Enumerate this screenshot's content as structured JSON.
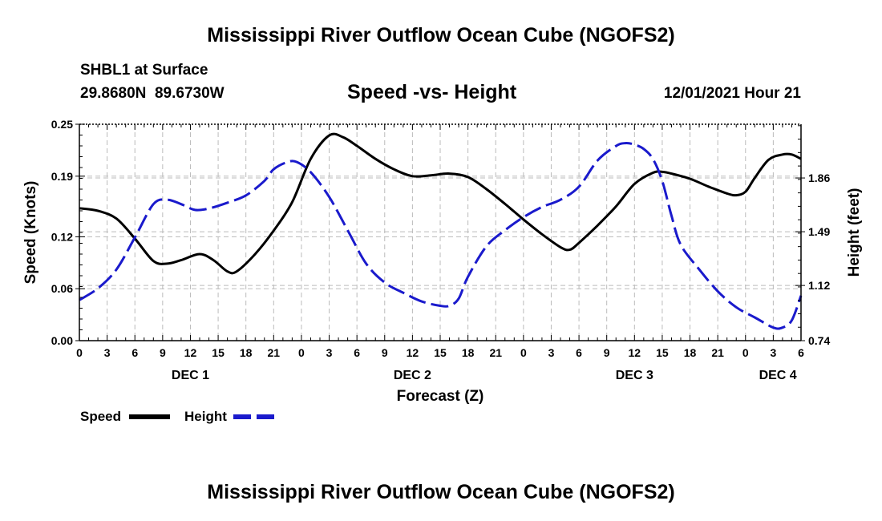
{
  "header": {
    "title": "Mississippi River Outflow Ocean Cube (NGOFS2)",
    "station": "SHBL1 at Surface",
    "coords": "29.8680N  89.6730W",
    "subtitle": "Speed -vs- Height",
    "datetime": "12/01/2021 Hour 21",
    "footer_title": "Mississippi River Outflow Ocean Cube (NGOFS2)"
  },
  "legend": {
    "speed_label": "Speed",
    "height_label": "Height"
  },
  "colors": {
    "speed": "#000000",
    "height": "#1a1acc",
    "grid": "#bbbbbb"
  },
  "chart_data": {
    "type": "line",
    "xlabel": "Forecast (Z)",
    "ylabel": "Speed (Knots)",
    "y2label": "Height (feet)",
    "x_unit": "hours from DEC 1 00Z",
    "xlim": [
      0,
      78
    ],
    "ylim": [
      0,
      0.25
    ],
    "y2lim": [
      0.74,
      2.23
    ],
    "x_ticks": [
      0,
      3,
      6,
      9,
      12,
      15,
      18,
      21,
      24,
      27,
      30,
      33,
      36,
      39,
      42,
      45,
      48,
      51,
      54,
      57,
      60,
      63,
      66,
      69,
      72,
      75,
      78
    ],
    "x_tick_labels": [
      "0",
      "3",
      "6",
      "9",
      "12",
      "15",
      "18",
      "21",
      "0",
      "3",
      "6",
      "9",
      "12",
      "15",
      "18",
      "21",
      "0",
      "3",
      "6",
      "9",
      "12",
      "15",
      "18",
      "21",
      "0",
      "3",
      "6"
    ],
    "date_labels": [
      {
        "x": 12,
        "label": "DEC 1"
      },
      {
        "x": 36,
        "label": "DEC 2"
      },
      {
        "x": 60,
        "label": "DEC 3"
      },
      {
        "x": 75.5,
        "label": "DEC 4"
      }
    ],
    "y_ticks": [
      0.0,
      0.06,
      0.12,
      0.19,
      0.25
    ],
    "y_tick_labels": [
      "0.00",
      "0.06",
      "0.12",
      "0.19",
      "0.25"
    ],
    "y2_ticks": [
      0.74,
      1.12,
      1.49,
      1.86
    ],
    "y2_tick_labels": [
      "0.74",
      "1.12",
      "1.49",
      "1.86"
    ],
    "series": [
      {
        "name": "Speed",
        "axis": "left",
        "style": "solid",
        "points": [
          [
            0,
            0.153
          ],
          [
            2,
            0.15
          ],
          [
            4,
            0.141
          ],
          [
            6,
            0.118
          ],
          [
            8,
            0.092
          ],
          [
            9.5,
            0.089
          ],
          [
            11,
            0.093
          ],
          [
            13,
            0.1
          ],
          [
            14.5,
            0.093
          ],
          [
            16,
            0.08
          ],
          [
            17,
            0.08
          ],
          [
            19,
            0.1
          ],
          [
            21,
            0.127
          ],
          [
            23,
            0.16
          ],
          [
            25,
            0.21
          ],
          [
            27,
            0.237
          ],
          [
            28.5,
            0.235
          ],
          [
            30,
            0.225
          ],
          [
            32,
            0.21
          ],
          [
            34,
            0.198
          ],
          [
            36,
            0.19
          ],
          [
            38,
            0.191
          ],
          [
            40,
            0.193
          ],
          [
            42,
            0.189
          ],
          [
            44,
            0.175
          ],
          [
            46,
            0.158
          ],
          [
            48,
            0.14
          ],
          [
            50,
            0.123
          ],
          [
            52,
            0.108
          ],
          [
            53,
            0.105
          ],
          [
            54,
            0.113
          ],
          [
            56,
            0.133
          ],
          [
            58,
            0.155
          ],
          [
            60,
            0.181
          ],
          [
            62,
            0.194
          ],
          [
            63,
            0.195
          ],
          [
            64,
            0.193
          ],
          [
            66,
            0.187
          ],
          [
            68,
            0.178
          ],
          [
            70,
            0.17
          ],
          [
            71,
            0.168
          ],
          [
            72,
            0.172
          ],
          [
            73,
            0.188
          ],
          [
            74.5,
            0.209
          ],
          [
            76,
            0.215
          ],
          [
            77,
            0.215
          ],
          [
            78,
            0.21
          ]
        ]
      },
      {
        "name": "Height",
        "axis": "right",
        "style": "dashed",
        "points": [
          [
            0,
            1.02
          ],
          [
            2,
            1.1
          ],
          [
            4,
            1.23
          ],
          [
            6,
            1.45
          ],
          [
            8,
            1.68
          ],
          [
            9.5,
            1.71
          ],
          [
            11,
            1.68
          ],
          [
            12.5,
            1.64
          ],
          [
            14,
            1.65
          ],
          [
            16,
            1.69
          ],
          [
            18,
            1.74
          ],
          [
            20,
            1.84
          ],
          [
            21,
            1.92
          ],
          [
            22.5,
            1.97
          ],
          [
            23.5,
            1.97
          ],
          [
            25,
            1.9
          ],
          [
            27,
            1.73
          ],
          [
            29,
            1.5
          ],
          [
            31,
            1.27
          ],
          [
            33,
            1.14
          ],
          [
            35,
            1.07
          ],
          [
            37,
            1.01
          ],
          [
            39,
            0.98
          ],
          [
            40,
            0.98
          ],
          [
            41,
            1.03
          ],
          [
            42,
            1.18
          ],
          [
            44,
            1.39
          ],
          [
            46,
            1.5
          ],
          [
            48,
            1.59
          ],
          [
            50,
            1.66
          ],
          [
            52,
            1.71
          ],
          [
            54,
            1.8
          ],
          [
            56,
            1.98
          ],
          [
            58,
            2.08
          ],
          [
            59,
            2.1
          ],
          [
            60,
            2.09
          ],
          [
            61,
            2.06
          ],
          [
            62,
            1.99
          ],
          [
            63,
            1.84
          ],
          [
            64,
            1.6
          ],
          [
            65,
            1.4
          ],
          [
            67,
            1.23
          ],
          [
            69,
            1.08
          ],
          [
            71,
            0.97
          ],
          [
            73,
            0.9
          ],
          [
            75,
            0.83
          ],
          [
            76,
            0.83
          ],
          [
            77,
            0.88
          ],
          [
            78,
            1.05
          ]
        ]
      }
    ]
  }
}
